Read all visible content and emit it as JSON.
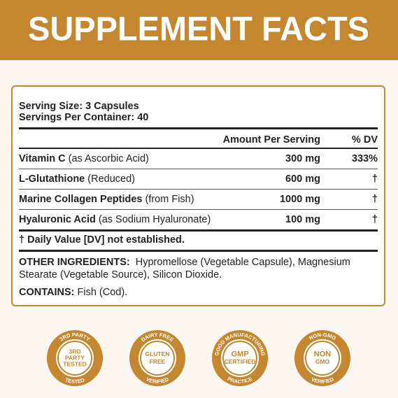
{
  "header": {
    "title": "SUPPLEMENT FACTS"
  },
  "facts": {
    "serving_size": "Serving Size: 3 Capsules",
    "servings_per_container": "Servings Per Container: 40",
    "column_headers": [
      "Amount Per Serving",
      "% DV"
    ],
    "rows": [
      {
        "name": "Vitamin C",
        "qualifier": "(as Ascorbic Acid)",
        "amount": "300 mg",
        "dv": "333%"
      },
      {
        "name": "L-Glutathione",
        "qualifier": "(Reduced)",
        "amount": "600 mg",
        "dv": "†"
      },
      {
        "name": "Marine Collagen Peptides",
        "qualifier": "(from Fish)",
        "amount": "1000 mg",
        "dv": "†"
      },
      {
        "name": "Hyaluronic Acid",
        "qualifier": "(as Sodium Hyaluronate)",
        "amount": "100 mg",
        "dv": "†"
      }
    ],
    "footnote": "† Daily Value [DV] not established.",
    "other_ingredients": {
      "label": "OTHER INGREDIENTS:",
      "text": "Hypromellose (Vegetable Capsule), Magnesium Stearate (Vegetable Source), Silicon Dioxide."
    },
    "contains": {
      "label": "CONTAINS:",
      "text": "Fish (Cod)."
    }
  },
  "badges": [
    {
      "top": "3RD PARTY",
      "center": [
        "3RD",
        "PARTY",
        "TESTED"
      ],
      "bottom": "TESTED"
    },
    {
      "top": "DAIRY FREE",
      "center": [
        "GLUTEN",
        "FREE"
      ],
      "bottom": "VERIFIED"
    },
    {
      "top": "GOOD MANUFACTURING",
      "center": [
        "GMP",
        "CERTIFIED"
      ],
      "bottom": "PRACTICE"
    },
    {
      "top": "NON-GMO",
      "center": [
        "NON",
        "GMO"
      ],
      "bottom": "VERIFIED"
    }
  ]
}
